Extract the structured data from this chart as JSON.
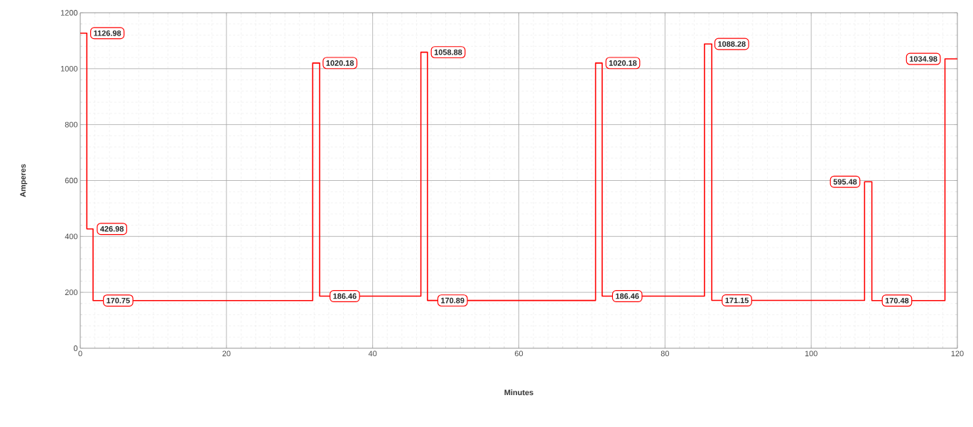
{
  "chart_data": {
    "type": "step",
    "xlabel": "Minutes",
    "ylabel": "Amperes",
    "xlim": [
      0,
      120
    ],
    "xticks": [
      0,
      20,
      40,
      60,
      80,
      100,
      120
    ],
    "ylim": [
      0,
      1200
    ],
    "yticks": [
      0,
      200,
      400,
      600,
      800,
      1000,
      1200
    ],
    "grid": true,
    "x": [
      0,
      0.9,
      1.75,
      31.8,
      32.75,
      46.6,
      47.5,
      70.5,
      71.4,
      85.4,
      86.4,
      107.3,
      108.3,
      118.3,
      120
    ],
    "series": [
      {
        "color": "#ff0000",
        "values": [
          1126.98,
          426.98,
          170.75,
          1020.18,
          186.46,
          1058.88,
          170.89,
          1020.18,
          186.46,
          1088.28,
          171.15,
          595.48,
          170.48,
          1034.98,
          1034.98
        ],
        "value_labels": [
          "1126.98",
          "426.98",
          "170.75",
          "1020.18",
          "186.46",
          "1058.88",
          "170.89",
          "1020.18",
          "186.46",
          "1088.28",
          "171.15",
          "595.48",
          "170.48",
          "1034.98",
          null
        ]
      }
    ]
  }
}
